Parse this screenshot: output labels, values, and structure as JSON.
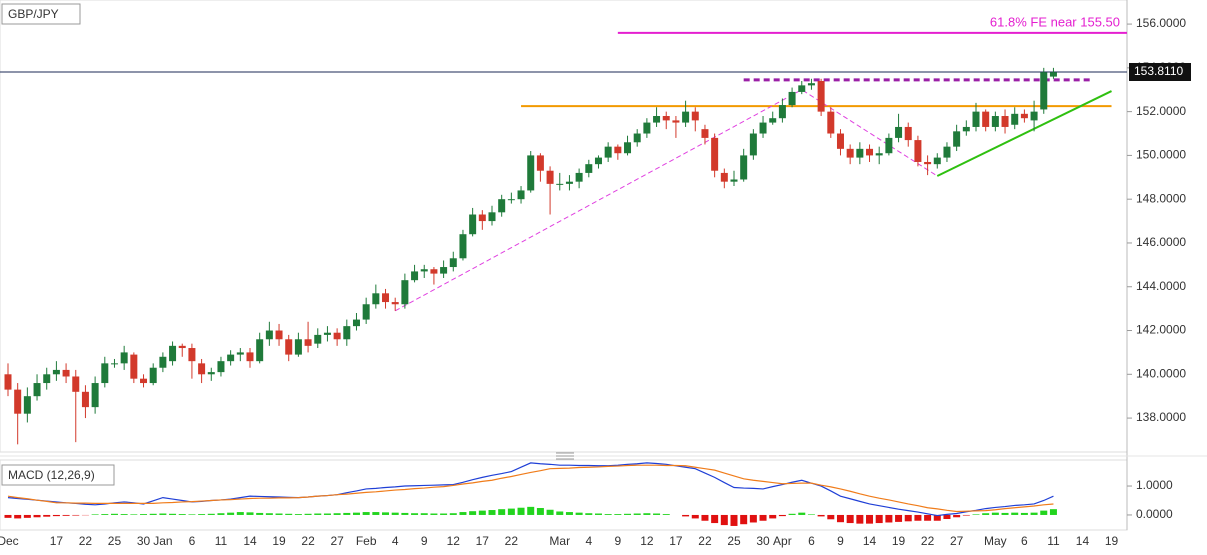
{
  "chart_data": [
    {
      "type": "candlestick",
      "title": "GBP/JPY",
      "categories": [
        "Dec",
        null,
        null,
        null,
        null,
        "17",
        null,
        null,
        "22",
        null,
        null,
        "25",
        null,
        null,
        "30",
        null,
        "Jan",
        null,
        null,
        "6",
        null,
        null,
        "11",
        null,
        null,
        "14",
        null,
        null,
        "19",
        null,
        null,
        "22",
        null,
        null,
        "27",
        null,
        null,
        "Feb",
        null,
        null,
        "4",
        null,
        null,
        "9",
        null,
        null,
        "12",
        null,
        null,
        "17",
        null,
        null,
        "22",
        null,
        null,
        null,
        null,
        "Mar",
        null,
        null,
        "4",
        null,
        null,
        "9",
        null,
        null,
        "12",
        null,
        null,
        "17",
        null,
        null,
        "22",
        null,
        null,
        "25",
        null,
        null,
        "30",
        null,
        "Apr",
        null,
        null,
        "6",
        null,
        null,
        "9",
        null,
        null,
        "14",
        null,
        null,
        "19",
        null,
        null,
        "22",
        null,
        null,
        "27",
        null,
        null,
        null,
        "May",
        null,
        null,
        "6",
        null,
        null,
        "11",
        null,
        null,
        "14",
        null,
        null,
        "19"
      ],
      "open": [
        140.0,
        139.3,
        138.2,
        139.0,
        139.6,
        140.0,
        140.2,
        139.9,
        139.2,
        138.5,
        139.6,
        140.5,
        140.5,
        140.9,
        139.8,
        139.6,
        140.3,
        140.6,
        141.3,
        141.2,
        140.5,
        140.0,
        140.1,
        140.6,
        140.9,
        141.0,
        140.6,
        141.6,
        142.0,
        141.6,
        140.9,
        141.6,
        141.4,
        141.8,
        141.9,
        141.6,
        142.2,
        142.5,
        143.2,
        143.7,
        143.3,
        143.2,
        144.3,
        144.7,
        144.8,
        144.6,
        144.9,
        145.3,
        146.4,
        147.3,
        147.0,
        147.4,
        148.0,
        148.0,
        148.4,
        150.0,
        149.3,
        148.7,
        148.7,
        148.8,
        149.2,
        149.6,
        149.9,
        150.4,
        150.1,
        150.6,
        151.0,
        151.5,
        151.8,
        151.6,
        151.5,
        152.0,
        151.2,
        150.8,
        149.2,
        148.8,
        148.9,
        150.0,
        151.0,
        151.5,
        151.7,
        152.3,
        152.9,
        153.2,
        153.4,
        152.0,
        151.0,
        150.3,
        149.9,
        150.3,
        150.0,
        150.1,
        150.8,
        151.3,
        150.7,
        149.7,
        149.6,
        149.9,
        150.4,
        151.1,
        151.3,
        152.0,
        151.3,
        151.8,
        151.4,
        151.9,
        151.6,
        152.1,
        153.6,
        null,
        null,
        null,
        null,
        null,
        null
      ],
      "high": [
        140.5,
        139.6,
        139.4,
        140.0,
        140.3,
        140.6,
        140.5,
        140.2,
        139.5,
        139.9,
        140.8,
        140.7,
        141.3,
        141.0,
        140.0,
        140.5,
        141.0,
        141.5,
        141.4,
        141.4,
        140.7,
        140.3,
        140.8,
        141.1,
        141.2,
        141.2,
        141.9,
        142.4,
        142.3,
        141.8,
        141.9,
        142.4,
        142.1,
        142.2,
        142.1,
        142.5,
        142.8,
        143.5,
        144.1,
        143.9,
        143.5,
        144.6,
        145.0,
        145.0,
        144.9,
        145.2,
        145.6,
        146.6,
        147.6,
        147.5,
        147.7,
        148.2,
        148.3,
        148.6,
        150.2,
        150.1,
        149.5,
        149.2,
        149.1,
        149.4,
        149.8,
        150.0,
        150.6,
        150.5,
        150.9,
        151.2,
        151.7,
        152.2,
        152.0,
        151.8,
        152.5,
        152.2,
        151.4,
        151.0,
        149.4,
        149.3,
        150.3,
        151.2,
        151.8,
        152.0,
        152.6,
        153.1,
        153.4,
        153.5,
        153.5,
        152.2,
        151.2,
        150.5,
        150.6,
        150.5,
        150.4,
        151.0,
        151.9,
        151.5,
        150.9,
        150.0,
        150.1,
        150.6,
        151.4,
        151.6,
        152.4,
        152.1,
        152.0,
        152.1,
        152.2,
        152.1,
        152.5,
        154.0,
        154.0,
        null,
        null,
        null,
        null,
        null,
        null
      ],
      "low": [
        139.0,
        136.8,
        137.8,
        138.8,
        139.3,
        139.7,
        139.6,
        136.9,
        138.0,
        138.2,
        139.4,
        140.3,
        140.2,
        139.6,
        139.4,
        139.5,
        140.1,
        140.4,
        140.8,
        139.8,
        139.6,
        139.7,
        139.9,
        140.4,
        140.6,
        140.3,
        140.5,
        141.3,
        141.3,
        140.6,
        140.8,
        141.0,
        141.2,
        141.5,
        141.3,
        141.3,
        142.0,
        142.3,
        143.0,
        143.0,
        142.9,
        143.0,
        144.2,
        144.4,
        144.1,
        144.4,
        144.7,
        145.2,
        146.3,
        146.6,
        146.8,
        147.2,
        147.8,
        147.8,
        148.3,
        148.8,
        147.3,
        148.4,
        148.4,
        148.5,
        149.0,
        149.4,
        149.7,
        149.8,
        150.0,
        150.4,
        150.8,
        151.3,
        151.2,
        150.8,
        151.3,
        151.1,
        150.5,
        149.0,
        148.5,
        148.6,
        148.8,
        149.8,
        150.8,
        151.4,
        151.5,
        152.2,
        152.8,
        153.0,
        151.8,
        150.8,
        150.0,
        149.6,
        149.6,
        149.7,
        149.6,
        150.0,
        150.6,
        150.4,
        149.5,
        149.1,
        149.4,
        149.7,
        150.2,
        150.9,
        151.1,
        151.1,
        151.1,
        151.0,
        151.2,
        151.5,
        151.1,
        151.9,
        153.5,
        null,
        null,
        null,
        null,
        null,
        null
      ],
      "close": [
        139.3,
        138.2,
        139.0,
        139.6,
        140.0,
        140.2,
        139.9,
        139.2,
        138.5,
        139.6,
        140.5,
        140.5,
        141.0,
        139.8,
        139.6,
        140.3,
        140.8,
        141.3,
        141.2,
        140.6,
        140.0,
        140.1,
        140.6,
        140.9,
        141.0,
        140.6,
        141.6,
        142.0,
        141.6,
        140.9,
        141.6,
        141.3,
        141.8,
        141.9,
        141.6,
        142.2,
        142.5,
        143.2,
        143.7,
        143.3,
        143.2,
        144.3,
        144.7,
        144.8,
        144.6,
        144.9,
        145.3,
        146.4,
        147.3,
        147.0,
        147.4,
        148.0,
        148.0,
        148.4,
        150.0,
        149.3,
        148.7,
        148.7,
        148.8,
        149.2,
        149.6,
        149.9,
        150.4,
        150.1,
        150.6,
        151.0,
        151.5,
        151.8,
        151.6,
        151.5,
        152.0,
        151.6,
        150.8,
        149.3,
        148.8,
        148.9,
        150.0,
        151.0,
        151.5,
        151.7,
        152.3,
        152.9,
        153.2,
        153.3,
        152.0,
        151.0,
        150.3,
        149.9,
        150.3,
        150.0,
        150.1,
        150.8,
        151.3,
        150.7,
        149.7,
        149.6,
        149.9,
        150.4,
        151.1,
        151.3,
        152.0,
        151.3,
        151.8,
        151.3,
        151.9,
        151.7,
        152.0,
        153.8,
        153.8,
        null,
        null,
        null,
        null,
        null,
        null
      ],
      "up_color": "#1f7a3a",
      "down_color": "#d2392b",
      "ylim": [
        136.45,
        157.1
      ],
      "yticks": [
        {
          "value": 138,
          "label": "138.0000"
        },
        {
          "value": 140,
          "label": "140.0000"
        },
        {
          "value": 142,
          "label": "142.0000"
        },
        {
          "value": 144,
          "label": "144.0000"
        },
        {
          "value": 146,
          "label": "146.0000"
        },
        {
          "value": 148,
          "label": "148.0000"
        },
        {
          "value": 150,
          "label": "150.0000"
        },
        {
          "value": 152,
          "label": "152.0000"
        },
        {
          "value": 154,
          "label": "154.0000"
        },
        {
          "value": 156,
          "label": "156.0000"
        }
      ],
      "last_price": {
        "value": 153.811,
        "label": "153.8110",
        "color": "#1b2a55"
      },
      "levels": [
        {
          "label": "61.8% FE near 155.50",
          "value": 155.6,
          "x": [
            63,
            116
          ],
          "color": "#e41fd0",
          "style": "solid"
        },
        {
          "value": 153.45,
          "x": [
            76,
            112
          ],
          "color": "#9a1fa6",
          "style": "dashed"
        },
        {
          "value": 152.25,
          "x": [
            53,
            114
          ],
          "color": "#f29a00",
          "style": "solid"
        }
      ],
      "trendlines": [
        {
          "x": [
            96,
            114
          ],
          "y": [
            149.06,
            152.94
          ],
          "color": "#2fc010",
          "style": "solid"
        },
        {
          "x": [
            40,
            82,
            96
          ],
          "y": [
            142.9,
            153.0,
            149.06
          ],
          "color": "#e040e0",
          "style": "dashed"
        }
      ]
    },
    {
      "type": "macd",
      "title": "MACD (12,26,9)",
      "ylim": [
        -0.52,
        1.9
      ],
      "yticks": [
        {
          "value": 0,
          "label": "0.0000"
        },
        {
          "value": 1,
          "label": "1.0000"
        }
      ],
      "series": [
        {
          "color": "#1f3fd6",
          "values": [
            0.6,
            0.57,
            0.54,
            0.51,
            0.48,
            0.45,
            0.42,
            0.4,
            0.37,
            0.35,
            0.38,
            0.42,
            0.45,
            0.42,
            0.38,
            0.49,
            0.6,
            0.55,
            0.5,
            0.45,
            0.47,
            0.5,
            0.52,
            0.55,
            0.6,
            0.65,
            0.64,
            0.63,
            0.62,
            0.61,
            0.6,
            0.62,
            0.65,
            0.67,
            0.7,
            0.77,
            0.83,
            0.9,
            0.92,
            0.95,
            0.97,
            1.0,
            1.01,
            1.02,
            1.03,
            1.04,
            1.05,
            1.13,
            1.22,
            1.3,
            1.37,
            1.43,
            1.5,
            1.65,
            1.8,
            1.77,
            1.75,
            1.72,
            1.72,
            1.71,
            1.71,
            1.7,
            1.7,
            1.72,
            1.75,
            1.77,
            1.8,
            1.78,
            1.75,
            1.7,
            1.65,
            1.6,
            1.45,
            1.3,
            1.12,
            0.95,
            0.93,
            0.92,
            0.9,
            0.98,
            1.05,
            1.13,
            1.2,
            1.1,
            1.0,
            0.83,
            0.65,
            0.56,
            0.47,
            0.38,
            0.32,
            0.26,
            0.2,
            0.15,
            0.1,
            0.04,
            -0.02,
            0.02,
            0.05,
            0.11,
            0.16,
            0.22,
            0.26,
            0.29,
            0.33,
            0.35,
            0.38,
            0.5,
            0.65,
            null,
            null,
            null,
            null,
            null,
            null
          ]
        },
        {
          "color": "#f07c1a",
          "values": [
            0.65,
            0.6,
            0.56,
            0.51,
            0.47,
            0.42,
            0.42,
            0.41,
            0.41,
            0.4,
            0.4,
            0.4,
            0.4,
            0.4,
            0.4,
            0.4,
            0.42,
            0.43,
            0.45,
            0.46,
            0.48,
            0.5,
            0.52,
            0.53,
            0.55,
            0.57,
            0.58,
            0.58,
            0.59,
            0.59,
            0.6,
            0.62,
            0.65,
            0.67,
            0.7,
            0.72,
            0.75,
            0.78,
            0.8,
            0.83,
            0.86,
            0.88,
            0.91,
            0.93,
            0.96,
            0.98,
            1.02,
            1.07,
            1.11,
            1.16,
            1.2,
            1.27,
            1.33,
            1.4,
            1.47,
            1.53,
            1.6,
            1.61,
            1.62,
            1.64,
            1.65,
            1.66,
            1.68,
            1.69,
            1.71,
            1.72,
            1.72,
            1.72,
            1.71,
            1.71,
            1.7,
            1.65,
            1.6,
            1.55,
            1.45,
            1.35,
            1.25,
            1.2,
            1.16,
            1.12,
            1.08,
            1.09,
            1.1,
            1.1,
            1.03,
            0.97,
            0.9,
            0.82,
            0.73,
            0.65,
            0.58,
            0.52,
            0.45,
            0.38,
            0.32,
            0.25,
            0.21,
            0.16,
            0.12,
            0.13,
            0.14,
            0.15,
            0.18,
            0.22,
            0.25,
            0.28,
            0.31,
            0.35,
            0.38,
            null,
            null,
            null,
            null,
            null,
            null
          ]
        }
      ],
      "histogram": {
        "up_color": "#22d41e",
        "down_color": "#e01010",
        "values": [
          -0.1,
          -0.12,
          -0.1,
          -0.08,
          -0.06,
          -0.04,
          -0.03,
          -0.02,
          -0.01,
          0.02,
          0.03,
          0.04,
          0.03,
          0.02,
          0.03,
          0.04,
          0.05,
          0.04,
          0.03,
          0.02,
          0.03,
          0.04,
          0.06,
          0.08,
          0.1,
          0.09,
          0.07,
          0.06,
          0.05,
          0.04,
          0.03,
          0.04,
          0.05,
          0.05,
          0.06,
          0.07,
          0.08,
          0.1,
          0.1,
          0.09,
          0.08,
          0.07,
          0.06,
          0.06,
          0.05,
          0.05,
          0.06,
          0.1,
          0.13,
          0.15,
          0.17,
          0.2,
          0.22,
          0.25,
          0.28,
          0.24,
          0.18,
          0.12,
          0.1,
          0.08,
          0.06,
          0.05,
          0.03,
          0.03,
          0.04,
          0.05,
          0.06,
          0.05,
          0.03,
          0,
          -0.05,
          -0.12,
          -0.2,
          -0.28,
          -0.35,
          -0.38,
          -0.32,
          -0.26,
          -0.2,
          -0.12,
          -0.04,
          0.04,
          0.08,
          0.02,
          -0.05,
          -0.15,
          -0.25,
          -0.28,
          -0.3,
          -0.3,
          -0.28,
          -0.26,
          -0.24,
          -0.22,
          -0.2,
          -0.2,
          -0.2,
          -0.14,
          -0.08,
          -0.02,
          0.02,
          0.06,
          0.08,
          0.07,
          0.08,
          0.07,
          0.08,
          0.15,
          0.2,
          null,
          null,
          null,
          null,
          null,
          null
        ]
      }
    }
  ]
}
